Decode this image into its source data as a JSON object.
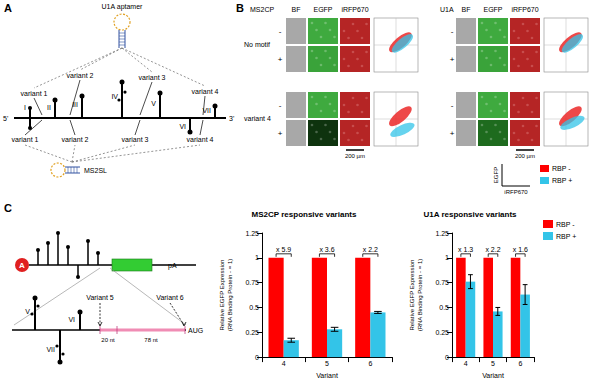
{
  "panels": {
    "A": {
      "label": "A",
      "aptamer": "U1A aptamer",
      "hairpin": "MS2SL",
      "ends": [
        "5'",
        "3'"
      ],
      "stem_loops": [
        "I",
        "II",
        "III",
        "IV",
        "V",
        "VI",
        "VII"
      ],
      "top_variants": [
        "variant 1",
        "variant 2",
        "variant 3",
        "variant 4"
      ],
      "bottom_variants": [
        "variant 1",
        "variant 2",
        "variant 3",
        "variant 4"
      ]
    },
    "B": {
      "label": "B",
      "groups": [
        "MS2CP",
        "U1A"
      ],
      "channels": [
        "BF",
        "EGFP",
        "iRFP670"
      ],
      "rows": [
        "No motif",
        "variant 4"
      ],
      "conditions": [
        "-",
        "+"
      ],
      "scale_bar": "200 µm",
      "legend": {
        "x_axis": "iRFP670",
        "y_axis": "EGFP",
        "entries": [
          {
            "name": "RBP -",
            "color": "#ff0000"
          },
          {
            "name": "RBP +",
            "color": "#33c4e8"
          }
        ]
      }
    },
    "C": {
      "label": "C",
      "cap": "A",
      "poly_a": "pA",
      "loops": [
        "V",
        "VI",
        "VII"
      ],
      "sites": [
        "Variant 5",
        "Variant 6"
      ],
      "spacers": [
        "20 nt",
        "78 nt"
      ],
      "start_codon": "AUG"
    }
  },
  "chart_data": [
    {
      "type": "bar",
      "title": "MS2CP responsive variants",
      "x_label": "Variant",
      "y_label": "Relative EGFP Expression\n(RNA Binding Protein - = 1)",
      "categories": [
        "4",
        "5",
        "6"
      ],
      "series": [
        {
          "name": "RBP -",
          "color": "#ff0000",
          "values": [
            1,
            1,
            1
          ]
        },
        {
          "name": "RBP +",
          "color": "#33c4e8",
          "values": [
            0.17,
            0.28,
            0.45
          ],
          "errors": [
            0.02,
            0.02,
            0.01
          ]
        }
      ],
      "annotations": [
        "x 5.9",
        "x 3.6",
        "x 2.2"
      ],
      "ylim": [
        0,
        1.25
      ],
      "yticks": [
        0,
        0.25,
        0.5,
        0.75,
        1,
        1.25
      ],
      "grid": false
    },
    {
      "type": "bar",
      "title": "U1A responsive variants",
      "x_label": "Variant",
      "y_label": "Relative EGFP Expression\n(RNA Binding Protein - = 1)",
      "categories": [
        "4",
        "5",
        "6"
      ],
      "series": [
        {
          "name": "RBP -",
          "color": "#ff0000",
          "values": [
            1,
            1,
            1
          ]
        },
        {
          "name": "RBP +",
          "color": "#33c4e8",
          "values": [
            0.76,
            0.46,
            0.63
          ],
          "errors": [
            0.07,
            0.04,
            0.1
          ]
        }
      ],
      "annotations": [
        "x 1.3",
        "x 2.2",
        "x 1.6"
      ],
      "ylim": [
        0,
        1.25
      ],
      "yticks": [
        0,
        0.25,
        0.5,
        0.75,
        1,
        1.25
      ],
      "grid": false,
      "legend": "right"
    }
  ]
}
